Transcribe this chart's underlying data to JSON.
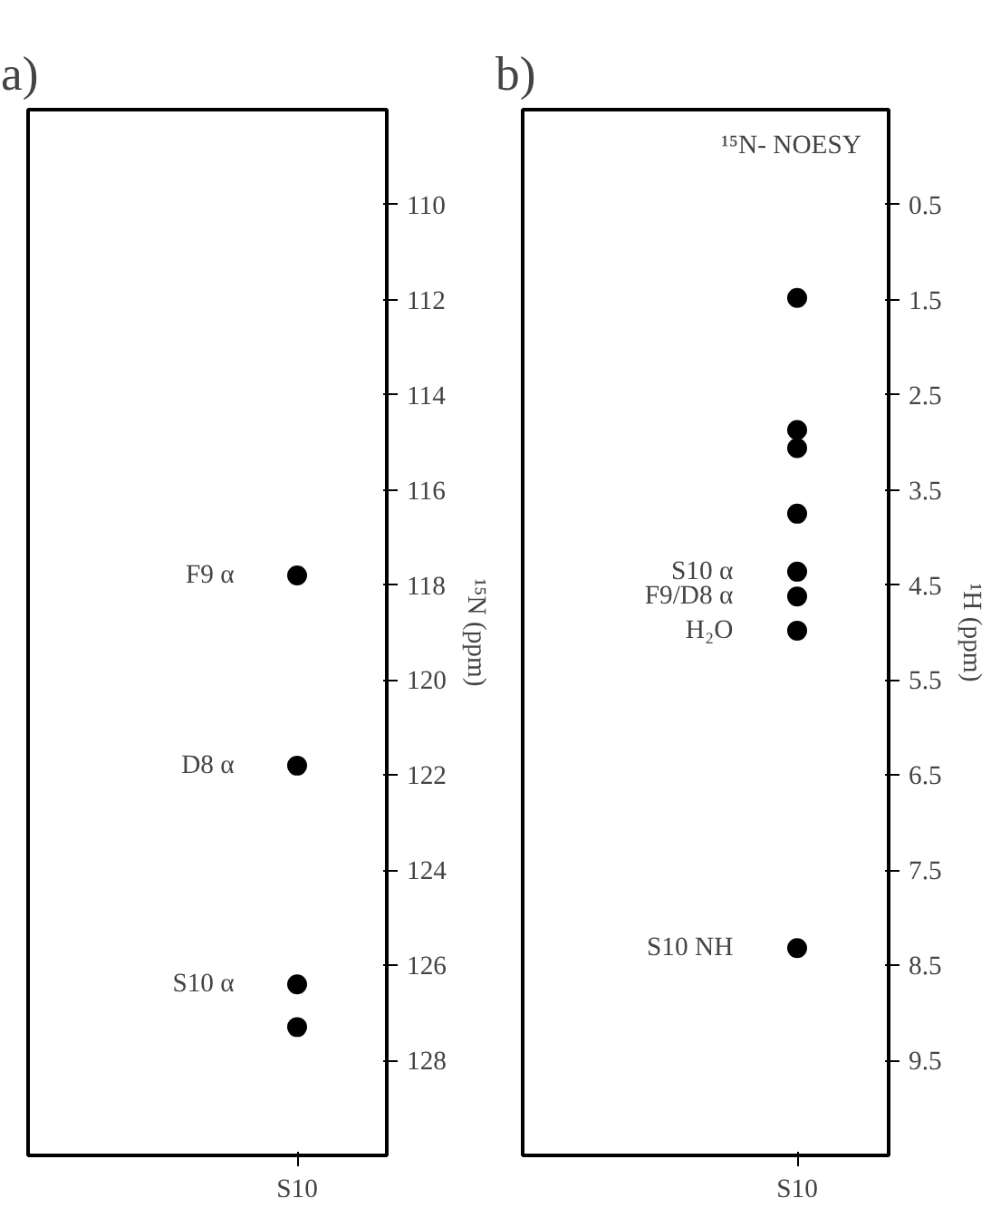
{
  "chart_data": [
    {
      "type": "scatter",
      "title": "a)",
      "ylabel": "¹⁵N (ppm)",
      "categories": [
        "S10"
      ],
      "ylim": [
        130,
        108
      ],
      "yticks": [
        110,
        112,
        114,
        116,
        118,
        120,
        122,
        124,
        126,
        128
      ],
      "grid": false,
      "series": [
        {
          "name": "F9 α",
          "color": "#000000",
          "values": [
            117.8
          ]
        },
        {
          "name": "D8 α",
          "color": "#000000",
          "values": [
            121.8
          ]
        },
        {
          "name": "S10 α",
          "color": "#000000",
          "values": [
            126.4
          ]
        },
        {
          "color": "#000000",
          "values": [
            127.3
          ]
        }
      ]
    },
    {
      "type": "scatter",
      "title": "b)",
      "ylabel": "¹H (ppm)",
      "categories": [
        "S10"
      ],
      "ylim": [
        10.5,
        -0.5
      ],
      "yticks": [
        0.5,
        1.5,
        2.5,
        3.5,
        4.5,
        5.5,
        6.5,
        7.5,
        8.5,
        9.5
      ],
      "grid": false,
      "annotations": [
        "¹⁵N- NOESY"
      ],
      "series": [
        {
          "color": "#000000",
          "values": [
            1.48
          ]
        },
        {
          "color": "#000000",
          "values": [
            2.87
          ]
        },
        {
          "color": "#000000",
          "values": [
            3.06
          ]
        },
        {
          "color": "#000000",
          "values": [
            3.75
          ]
        },
        {
          "name": "S10 α",
          "color": "#000000",
          "values": [
            4.36
          ]
        },
        {
          "name": "F9/D8 α",
          "color": "#000000",
          "values": [
            4.62
          ]
        },
        {
          "name": "H₂O",
          "color": "#000000",
          "values": [
            4.98
          ]
        },
        {
          "name": "S10 NH",
          "color": "#000000",
          "values": [
            8.32
          ]
        }
      ]
    }
  ]
}
